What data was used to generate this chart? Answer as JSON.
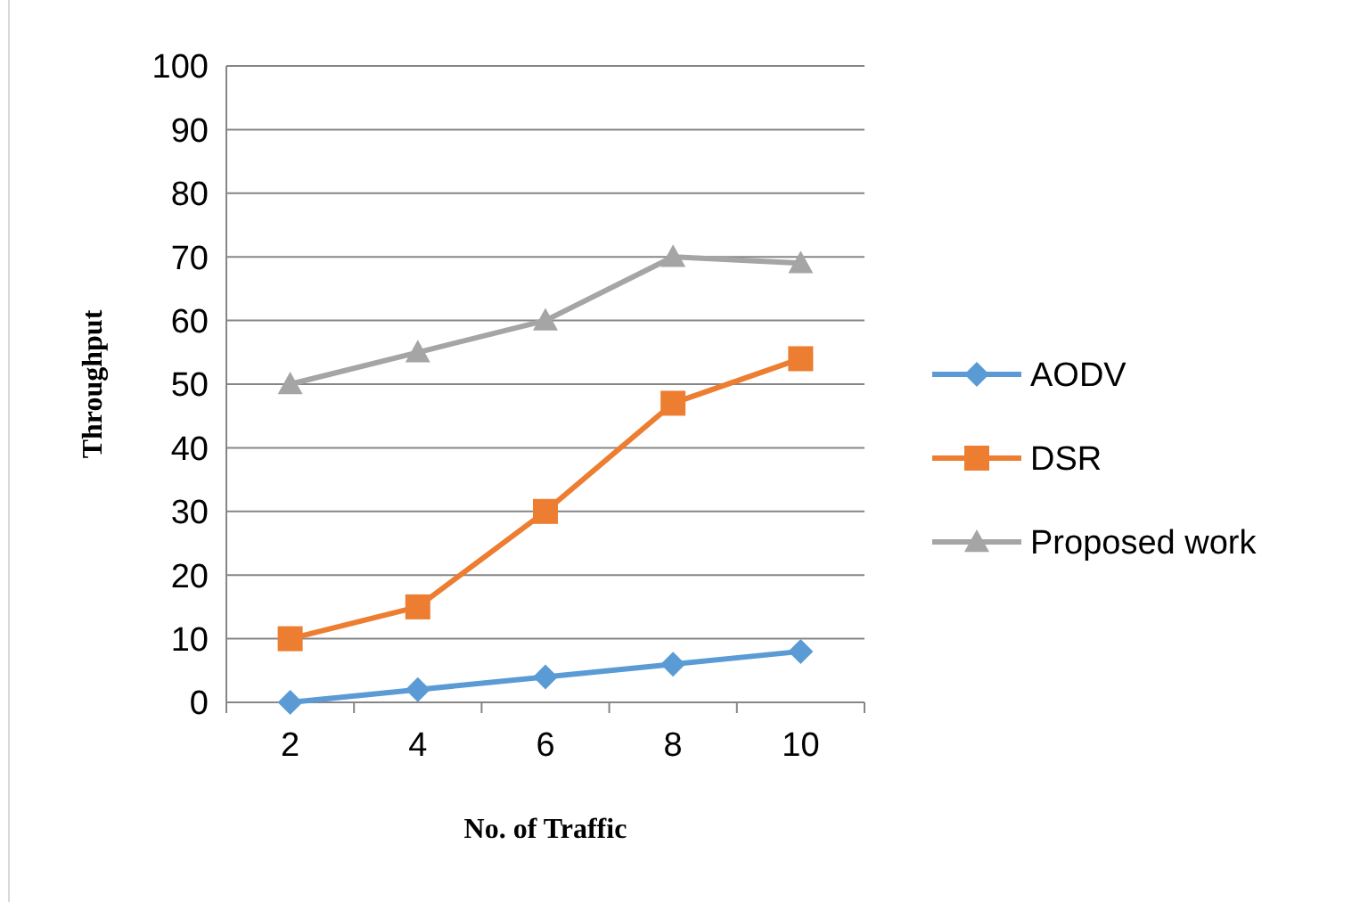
{
  "chart_data": {
    "type": "line",
    "xlabel": "No. of Traffic",
    "ylabel": "Throughput",
    "categories": [
      "2",
      "4",
      "6",
      "8",
      "10"
    ],
    "ylim": [
      0,
      100
    ],
    "yticks": [
      0,
      10,
      20,
      30,
      40,
      50,
      60,
      70,
      80,
      90,
      100
    ],
    "grid": "y",
    "legend": "right",
    "series": [
      {
        "name": "AODV",
        "color": "#5b9bd5",
        "marker": "diamond",
        "values": [
          0,
          2,
          4,
          6,
          8
        ]
      },
      {
        "name": "DSR",
        "color": "#ed7d31",
        "marker": "square",
        "values": [
          10,
          15,
          30,
          47,
          54
        ]
      },
      {
        "name": "Proposed work",
        "color": "#a5a5a5",
        "marker": "triangle",
        "values": [
          50,
          55,
          60,
          70,
          69
        ]
      }
    ]
  }
}
